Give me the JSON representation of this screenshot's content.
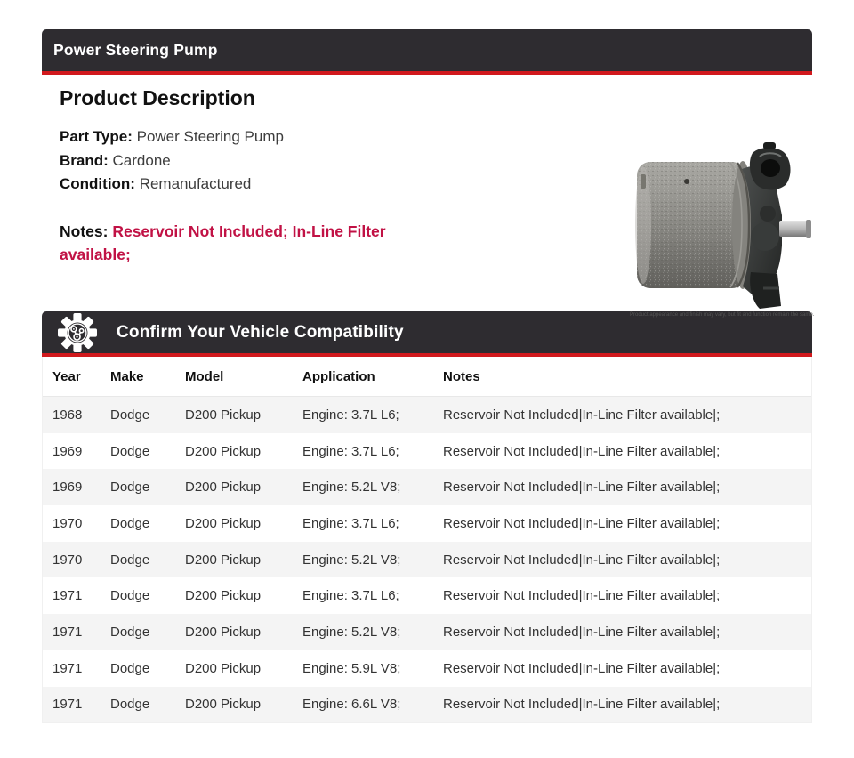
{
  "colors": {
    "bar_background": "#2e2c30",
    "bar_underline_red": "#d1191d",
    "notes_red": "#c11245",
    "row_alternate": "#f4f4f4"
  },
  "header": {
    "title": "Power Steering Pump"
  },
  "product": {
    "section_title": "Product Description",
    "fields": [
      {
        "label": "Part Type:",
        "value": "Power Steering Pump"
      },
      {
        "label": "Brand:",
        "value": "Cardone"
      },
      {
        "label": "Condition:",
        "value": "Remanufactured"
      }
    ],
    "notes_label": "Notes:",
    "notes_value": "Reservoir Not Included; In-Line Filter available;",
    "image_caption": "Product appearance and finish may vary, but fit and function remain the same."
  },
  "compatibility": {
    "title": "Confirm Your Vehicle Compatibility",
    "icon": "gear-engine-icon",
    "table": {
      "columns": [
        "Year",
        "Make",
        "Model",
        "Application",
        "Notes"
      ],
      "rows": [
        {
          "year": "1968",
          "make": "Dodge",
          "model": "D200 Pickup",
          "application": "Engine: 3.7L L6;",
          "notes": "Reservoir Not Included|In-Line Filter available|;"
        },
        {
          "year": "1969",
          "make": "Dodge",
          "model": "D200 Pickup",
          "application": "Engine: 3.7L L6;",
          "notes": "Reservoir Not Included|In-Line Filter available|;"
        },
        {
          "year": "1969",
          "make": "Dodge",
          "model": "D200 Pickup",
          "application": "Engine: 5.2L V8;",
          "notes": "Reservoir Not Included|In-Line Filter available|;"
        },
        {
          "year": "1970",
          "make": "Dodge",
          "model": "D200 Pickup",
          "application": "Engine: 3.7L L6;",
          "notes": "Reservoir Not Included|In-Line Filter available|;"
        },
        {
          "year": "1970",
          "make": "Dodge",
          "model": "D200 Pickup",
          "application": "Engine: 5.2L V8;",
          "notes": "Reservoir Not Included|In-Line Filter available|;"
        },
        {
          "year": "1971",
          "make": "Dodge",
          "model": "D200 Pickup",
          "application": "Engine: 3.7L L6;",
          "notes": "Reservoir Not Included|In-Line Filter available|;"
        },
        {
          "year": "1971",
          "make": "Dodge",
          "model": "D200 Pickup",
          "application": "Engine: 5.2L V8;",
          "notes": "Reservoir Not Included|In-Line Filter available|;"
        },
        {
          "year": "1971",
          "make": "Dodge",
          "model": "D200 Pickup",
          "application": "Engine: 5.9L V8;",
          "notes": "Reservoir Not Included|In-Line Filter available|;"
        },
        {
          "year": "1971",
          "make": "Dodge",
          "model": "D200 Pickup",
          "application": "Engine: 6.6L V8;",
          "notes": "Reservoir Not Included|In-Line Filter available|;"
        }
      ]
    }
  }
}
